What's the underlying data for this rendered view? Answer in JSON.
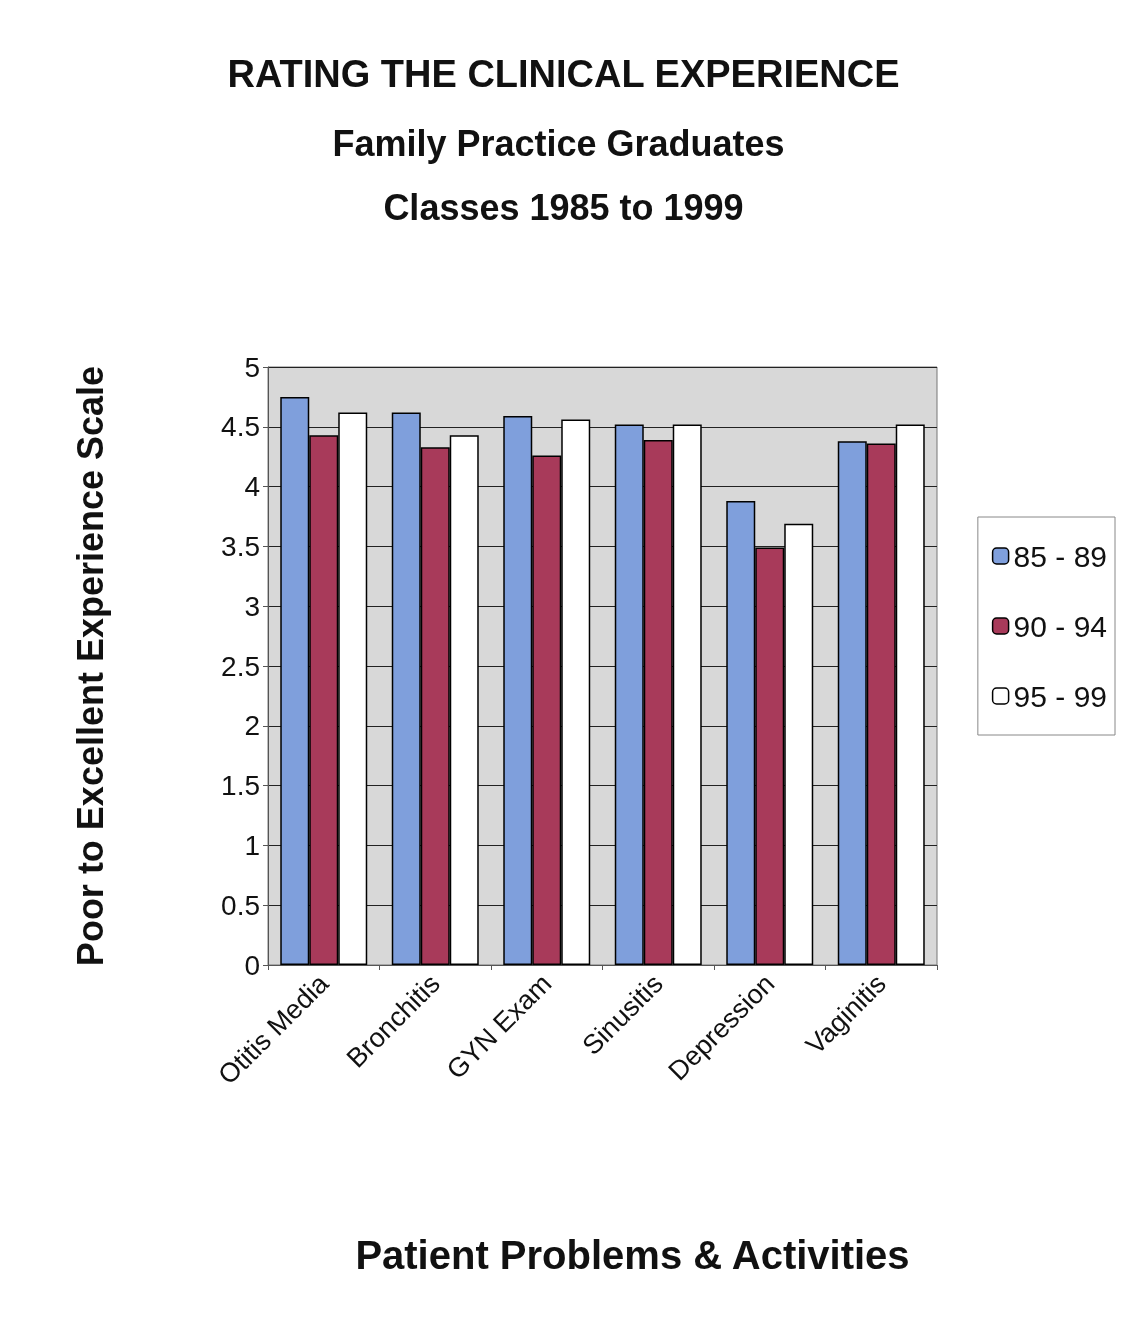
{
  "chart_data": {
    "type": "bar",
    "title": "RATING THE CLINICAL EXPERIENCE",
    "subtitle": "Family Practice Graduates Classes 1985 to 1999",
    "xlabel": "Patient Problems & Activities",
    "ylabel": "Poor to Excellent Experience Scale",
    "categories": [
      "Otitis Media",
      "Bronchitis",
      "GYN Exam",
      "Sinusitis",
      "Depression",
      "Vaginitis"
    ],
    "series": [
      {
        "name": "85 - 89",
        "color": "#7f9fdc",
        "values": [
          4.75,
          4.62,
          4.59,
          4.52,
          3.88,
          4.38
        ]
      },
      {
        "name": "90 - 94",
        "color": "#a83a5a",
        "values": [
          4.43,
          4.33,
          4.26,
          4.39,
          3.49,
          4.36
        ]
      },
      {
        "name": "95 - 99",
        "color": "#ffffff",
        "values": [
          4.62,
          4.43,
          4.56,
          4.52,
          3.69,
          4.52
        ]
      }
    ],
    "ylim": [
      0,
      5
    ],
    "yticks": [
      0,
      0.5,
      1,
      1.5,
      2,
      2.5,
      3,
      3.5,
      4,
      4.5,
      5
    ],
    "grid": "y",
    "legend": "right"
  }
}
